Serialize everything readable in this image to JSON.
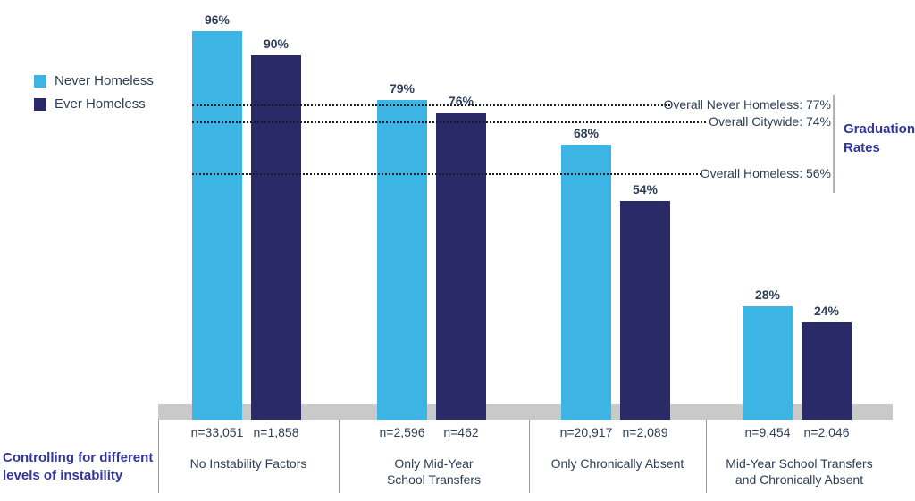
{
  "legend": {
    "items": [
      {
        "label": "Never Homeless",
        "color": "#3CB5E5"
      },
      {
        "label": "Ever Homeless",
        "color": "#2A2A68"
      }
    ]
  },
  "chart_data": {
    "type": "bar",
    "title": "",
    "xlabel": "",
    "ylabel": "Graduation Rates",
    "ylim": [
      0,
      100
    ],
    "grid": false,
    "legend_position": "top-left",
    "categories": [
      {
        "lines": [
          "No Instability Factors"
        ]
      },
      {
        "lines": [
          "Only Mid-Year",
          "School Transfers"
        ]
      },
      {
        "lines": [
          "Only Chronically Absent"
        ]
      },
      {
        "lines": [
          "Mid-Year School Transfers",
          "and Chronically Absent"
        ]
      }
    ],
    "series": [
      {
        "name": "Never Homeless",
        "color": "#3CB5E5",
        "values": [
          96,
          79,
          68,
          28
        ],
        "value_labels": [
          "96%",
          "79%",
          "68%",
          "28%"
        ],
        "n_labels": [
          "n=33,051",
          "n=2,596",
          "n=20,917",
          "n=9,454"
        ]
      },
      {
        "name": "Ever Homeless",
        "color": "#2A2A68",
        "values": [
          90,
          76,
          54,
          24
        ],
        "value_labels": [
          "90%",
          "76%",
          "54%",
          "24%"
        ],
        "n_labels": [
          "n=1,858",
          "n=462",
          "n=2,089",
          "n=2,046"
        ]
      }
    ],
    "reference_lines": [
      {
        "label": "Overall Never Homeless: 77%",
        "value": 77
      },
      {
        "label": "Overall Citywide: 74%",
        "value": 74
      },
      {
        "label": "Overall Homeless: 56%",
        "value": 56
      }
    ],
    "annotations": {
      "right_bracket_label": "Graduation Rates",
      "bottom_left_caption": "Controlling for different levels of instability"
    }
  },
  "colors": {
    "never_homeless": "#3CB5E5",
    "ever_homeless": "#2A2A68",
    "baseline_band": "#C9C9C9",
    "divider": "#999999",
    "reference_line": "#1B1B1B",
    "text_dark": "#2D3E55",
    "accent_purple": "#32359B"
  }
}
